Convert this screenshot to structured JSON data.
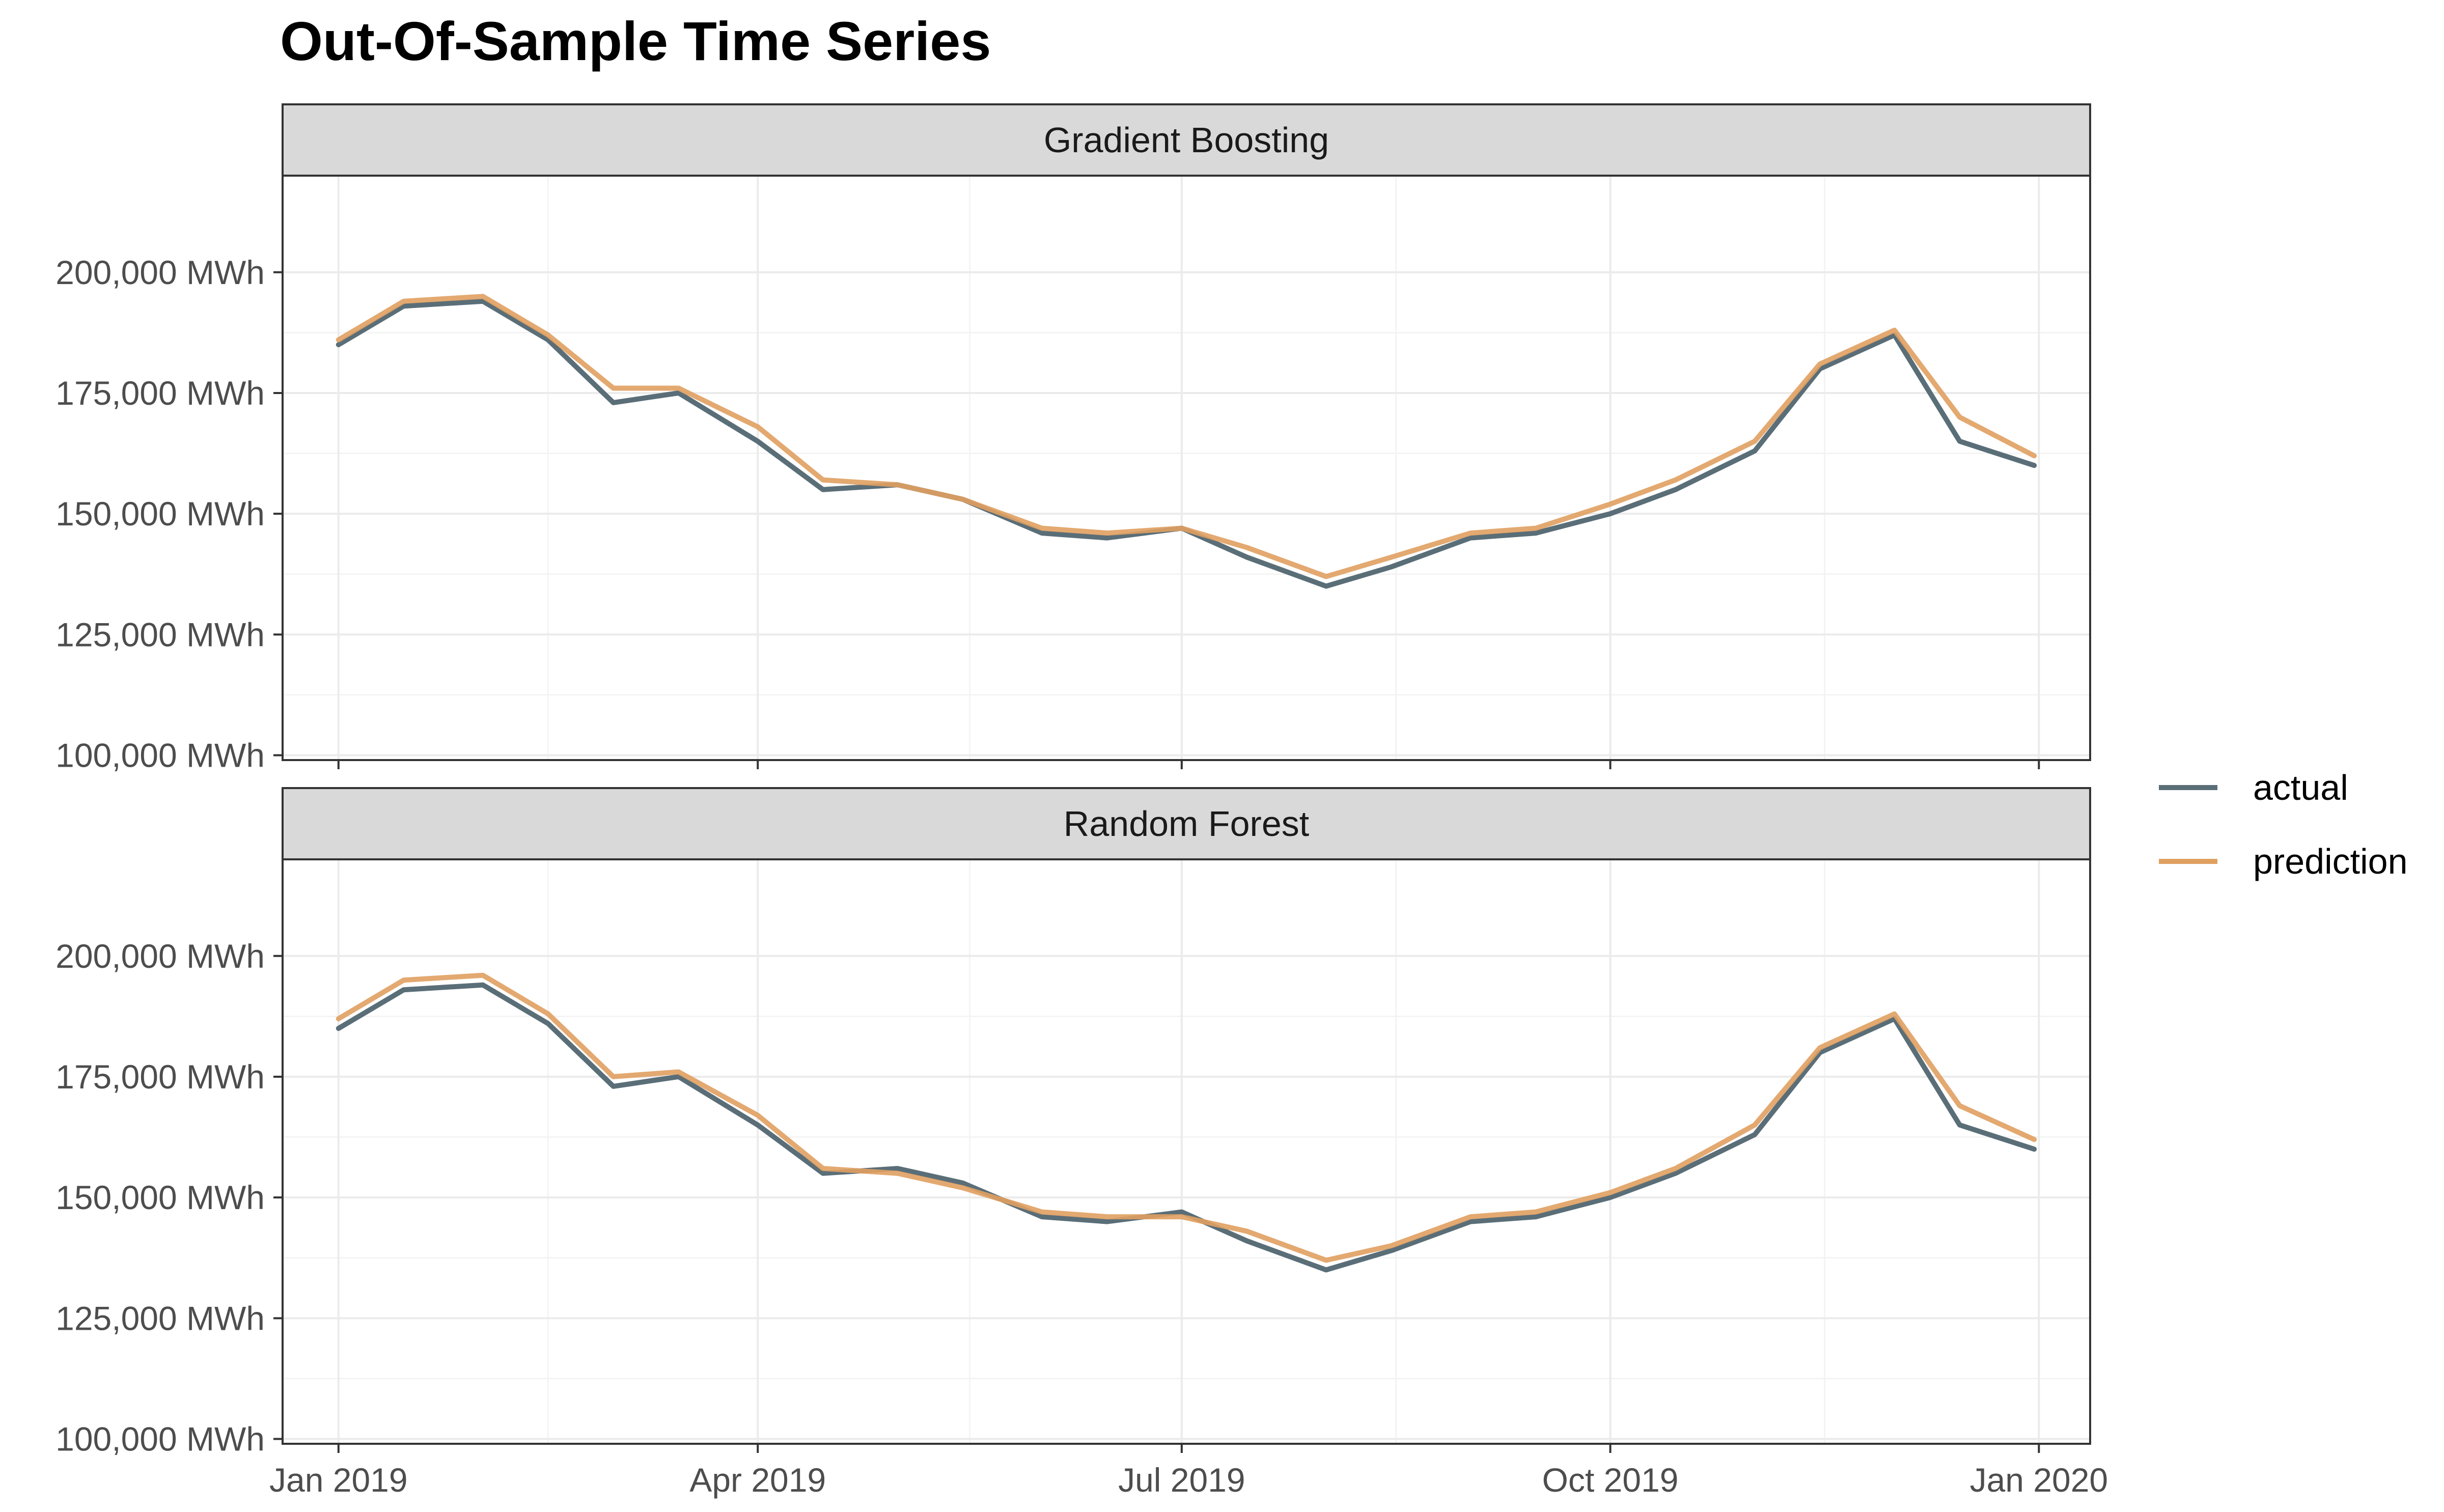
{
  "title": "Out-Of-Sample Time Series",
  "colors": {
    "actual": "#5a6e78",
    "prediction": "#e0a060"
  },
  "legend": {
    "placement": "right",
    "items": [
      "actual",
      "prediction"
    ]
  },
  "chart_data": [
    {
      "type": "line",
      "panel": "Gradient Boosting",
      "xlim": [
        "2018-12-20",
        "2020-01-12"
      ],
      "ylim": [
        99000,
        220000
      ],
      "x_ticks": [
        {
          "date": "2019-01-01",
          "label": "Jan 2019"
        },
        {
          "date": "2019-04-01",
          "label": "Apr 2019"
        },
        {
          "date": "2019-07-01",
          "label": "Jul 2019"
        },
        {
          "date": "2019-10-01",
          "label": "Oct 2019"
        },
        {
          "date": "2020-01-01",
          "label": "Jan 2020"
        }
      ],
      "y_ticks": [
        {
          "value": 100000,
          "label": "100,000 MWh"
        },
        {
          "value": 125000,
          "label": "125,000 MWh"
        },
        {
          "value": 150000,
          "label": "150,000 MWh"
        },
        {
          "value": 175000,
          "label": "175,000 MWh"
        },
        {
          "value": 200000,
          "label": "200,000 MWh"
        }
      ],
      "grid": true,
      "series": [
        {
          "name": "actual",
          "x": [
            "2019-01-01",
            "2019-01-15",
            "2019-02-01",
            "2019-02-15",
            "2019-03-01",
            "2019-03-15",
            "2019-04-01",
            "2019-04-15",
            "2019-05-01",
            "2019-05-15",
            "2019-06-01",
            "2019-06-15",
            "2019-07-01",
            "2019-07-15",
            "2019-08-01",
            "2019-08-15",
            "2019-09-01",
            "2019-09-15",
            "2019-10-01",
            "2019-10-15",
            "2019-11-01",
            "2019-11-15",
            "2019-12-01",
            "2019-12-15",
            "2019-12-31"
          ],
          "values": [
            185000,
            193000,
            194000,
            186000,
            173000,
            175000,
            165000,
            155000,
            156000,
            153000,
            146000,
            145000,
            147000,
            141000,
            135000,
            139000,
            145000,
            146000,
            150000,
            155000,
            163000,
            180000,
            187000,
            165000,
            160000
          ]
        },
        {
          "name": "prediction",
          "x": [
            "2019-01-01",
            "2019-01-15",
            "2019-02-01",
            "2019-02-15",
            "2019-03-01",
            "2019-03-15",
            "2019-04-01",
            "2019-04-15",
            "2019-05-01",
            "2019-05-15",
            "2019-06-01",
            "2019-06-15",
            "2019-07-01",
            "2019-07-15",
            "2019-08-01",
            "2019-08-15",
            "2019-09-01",
            "2019-09-15",
            "2019-10-01",
            "2019-10-15",
            "2019-11-01",
            "2019-11-15",
            "2019-12-01",
            "2019-12-15",
            "2019-12-31"
          ],
          "values": [
            186000,
            194000,
            195000,
            187000,
            176000,
            176000,
            168000,
            157000,
            156000,
            153000,
            147000,
            146000,
            147000,
            143000,
            137000,
            141000,
            146000,
            147000,
            152000,
            157000,
            165000,
            181000,
            188000,
            170000,
            162000
          ]
        }
      ]
    },
    {
      "type": "line",
      "panel": "Random Forest",
      "xlim": [
        "2018-12-20",
        "2020-01-12"
      ],
      "ylim": [
        99000,
        220000
      ],
      "x_ticks": [
        {
          "date": "2019-01-01",
          "label": "Jan 2019"
        },
        {
          "date": "2019-04-01",
          "label": "Apr 2019"
        },
        {
          "date": "2019-07-01",
          "label": "Jul 2019"
        },
        {
          "date": "2019-10-01",
          "label": "Oct 2019"
        },
        {
          "date": "2020-01-01",
          "label": "Jan 2020"
        }
      ],
      "y_ticks": [
        {
          "value": 100000,
          "label": "100,000 MWh"
        },
        {
          "value": 125000,
          "label": "125,000 MWh"
        },
        {
          "value": 150000,
          "label": "150,000 MWh"
        },
        {
          "value": 175000,
          "label": "175,000 MWh"
        },
        {
          "value": 200000,
          "label": "200,000 MWh"
        }
      ],
      "grid": true,
      "series": [
        {
          "name": "actual",
          "x": [
            "2019-01-01",
            "2019-01-15",
            "2019-02-01",
            "2019-02-15",
            "2019-03-01",
            "2019-03-15",
            "2019-04-01",
            "2019-04-15",
            "2019-05-01",
            "2019-05-15",
            "2019-06-01",
            "2019-06-15",
            "2019-07-01",
            "2019-07-15",
            "2019-08-01",
            "2019-08-15",
            "2019-09-01",
            "2019-09-15",
            "2019-10-01",
            "2019-10-15",
            "2019-11-01",
            "2019-11-15",
            "2019-12-01",
            "2019-12-15",
            "2019-12-31"
          ],
          "values": [
            185000,
            193000,
            194000,
            186000,
            173000,
            175000,
            165000,
            155000,
            156000,
            153000,
            146000,
            145000,
            147000,
            141000,
            135000,
            139000,
            145000,
            146000,
            150000,
            155000,
            163000,
            180000,
            187000,
            165000,
            160000
          ]
        },
        {
          "name": "prediction",
          "x": [
            "2019-01-01",
            "2019-01-15",
            "2019-02-01",
            "2019-02-15",
            "2019-03-01",
            "2019-03-15",
            "2019-04-01",
            "2019-04-15",
            "2019-05-01",
            "2019-05-15",
            "2019-06-01",
            "2019-06-15",
            "2019-07-01",
            "2019-07-15",
            "2019-08-01",
            "2019-08-15",
            "2019-09-01",
            "2019-09-15",
            "2019-10-01",
            "2019-10-15",
            "2019-11-01",
            "2019-11-15",
            "2019-12-01",
            "2019-12-15",
            "2019-12-31"
          ],
          "values": [
            187000,
            195000,
            196000,
            188000,
            175000,
            176000,
            167000,
            156000,
            155000,
            152000,
            147000,
            146000,
            146000,
            143000,
            137000,
            140000,
            146000,
            147000,
            151000,
            156000,
            165000,
            181000,
            188000,
            169000,
            162000
          ]
        }
      ]
    }
  ]
}
